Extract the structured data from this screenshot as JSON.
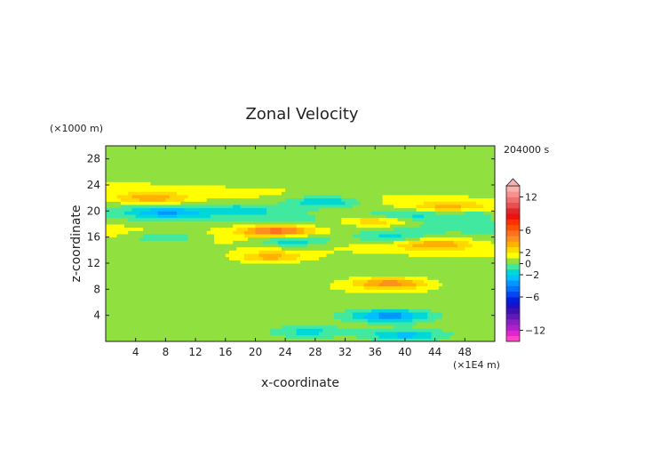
{
  "chart_data": {
    "type": "heatmap",
    "title": "Zonal Velocity",
    "xlabel": "x-coordinate",
    "ylabel": "z-coordinate",
    "x_unit": "(×1E4 m)",
    "y_unit": "(×1000 m)",
    "time_label": "204000 s",
    "xlim": [
      0,
      52
    ],
    "ylim": [
      0,
      30
    ],
    "x_ticks": [
      4,
      8,
      12,
      16,
      20,
      24,
      28,
      32,
      36,
      40,
      44,
      48
    ],
    "y_ticks": [
      4,
      8,
      12,
      16,
      20,
      24,
      28
    ],
    "colorbar": {
      "levels": [
        -14,
        -13,
        -12,
        -11,
        -10,
        -9,
        -8,
        -7,
        -6,
        -5,
        -4,
        -3,
        -2,
        -1,
        0,
        1,
        2,
        3,
        4,
        5,
        6,
        7,
        8,
        9,
        10,
        11,
        12,
        13,
        14
      ],
      "colors": [
        "#ff44c8",
        "#e024d0",
        "#b020c8",
        "#8a20c0",
        "#6018b8",
        "#4010b0",
        "#1c10c8",
        "#0020e0",
        "#0048f0",
        "#0070ff",
        "#0098ff",
        "#00c0ff",
        "#00d8d8",
        "#40e8a0",
        "#90e040",
        "#ffff00",
        "#ffd800",
        "#ffb000",
        "#ff9020",
        "#ff7020",
        "#ff5000",
        "#ff3000",
        "#f01010",
        "#e02828",
        "#e85050",
        "#f07070",
        "#f89090",
        "#f8b0b0"
      ],
      "tick_labels": [
        "12",
        "6",
        "2",
        "0",
        "−2",
        "−6",
        "−12"
      ],
      "tick_values": [
        12,
        6,
        2,
        0,
        -2,
        -6,
        -12
      ]
    },
    "features": [
      {
        "x": 8,
        "z": 19.8,
        "u": -3
      },
      {
        "x": 18,
        "z": 20.2,
        "u": -2
      },
      {
        "x": 29,
        "z": 21.5,
        "u": -3
      },
      {
        "x": 40,
        "z": 19.5,
        "u": -2
      },
      {
        "x": 48,
        "z": 19.8,
        "u": -2
      },
      {
        "x": 8,
        "z": 16,
        "u": -2
      },
      {
        "x": 25,
        "z": 15.5,
        "u": -3
      },
      {
        "x": 38,
        "z": 16,
        "u": -2
      },
      {
        "x": 6,
        "z": 22,
        "u": 3
      },
      {
        "x": 23,
        "z": 17,
        "u": 5
      },
      {
        "x": 36,
        "z": 18.5,
        "u": 3
      },
      {
        "x": 46,
        "z": 20.5,
        "u": 3
      },
      {
        "x": 44,
        "z": 15,
        "u": 3
      },
      {
        "x": 22,
        "z": 13,
        "u": 3
      },
      {
        "x": 38,
        "z": 4,
        "u": -4
      },
      {
        "x": 38,
        "z": 9,
        "u": 4
      },
      {
        "x": 40,
        "z": 1,
        "u": -3
      },
      {
        "x": 27,
        "z": 1.5,
        "u": -2
      }
    ]
  }
}
